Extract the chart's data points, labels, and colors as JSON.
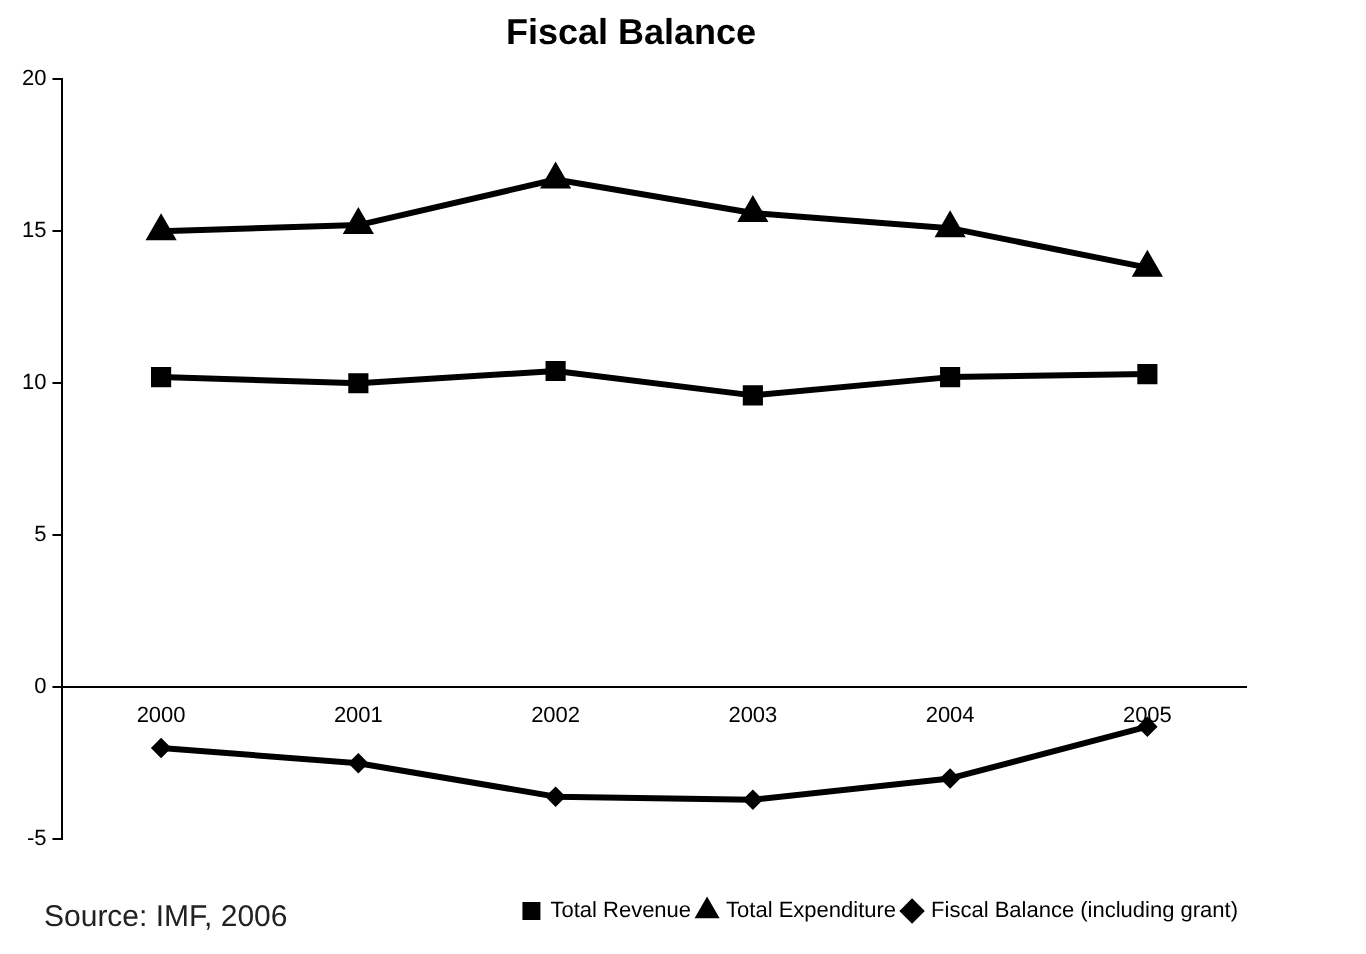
{
  "chart_data": {
    "type": "line",
    "title": "Fiscal Balance",
    "categories": [
      "2000",
      "2001",
      "2002",
      "2003",
      "2004",
      "2005"
    ],
    "series": [
      {
        "name": "Total Revenue",
        "color": "#000000",
        "marker": "square",
        "values": [
          10.2,
          10.0,
          10.4,
          9.6,
          10.2,
          10.3
        ]
      },
      {
        "name": "Total Expenditure",
        "color": "#000000",
        "marker": "triangle",
        "values": [
          15.0,
          15.2,
          16.7,
          15.6,
          15.1,
          13.8
        ]
      },
      {
        "name": "Fiscal Balance (including grant)",
        "color": "#000000",
        "marker": "diamond",
        "values": [
          -2.0,
          -2.5,
          -3.6,
          -3.7,
          -3.0,
          -1.3
        ]
      }
    ],
    "ylim": [
      -5,
      20
    ],
    "yticks": [
      -5,
      0,
      5,
      10,
      15,
      20
    ],
    "grid": false,
    "legend": "bottom right",
    "annotations": [
      "Source: IMF, 2006"
    ]
  }
}
